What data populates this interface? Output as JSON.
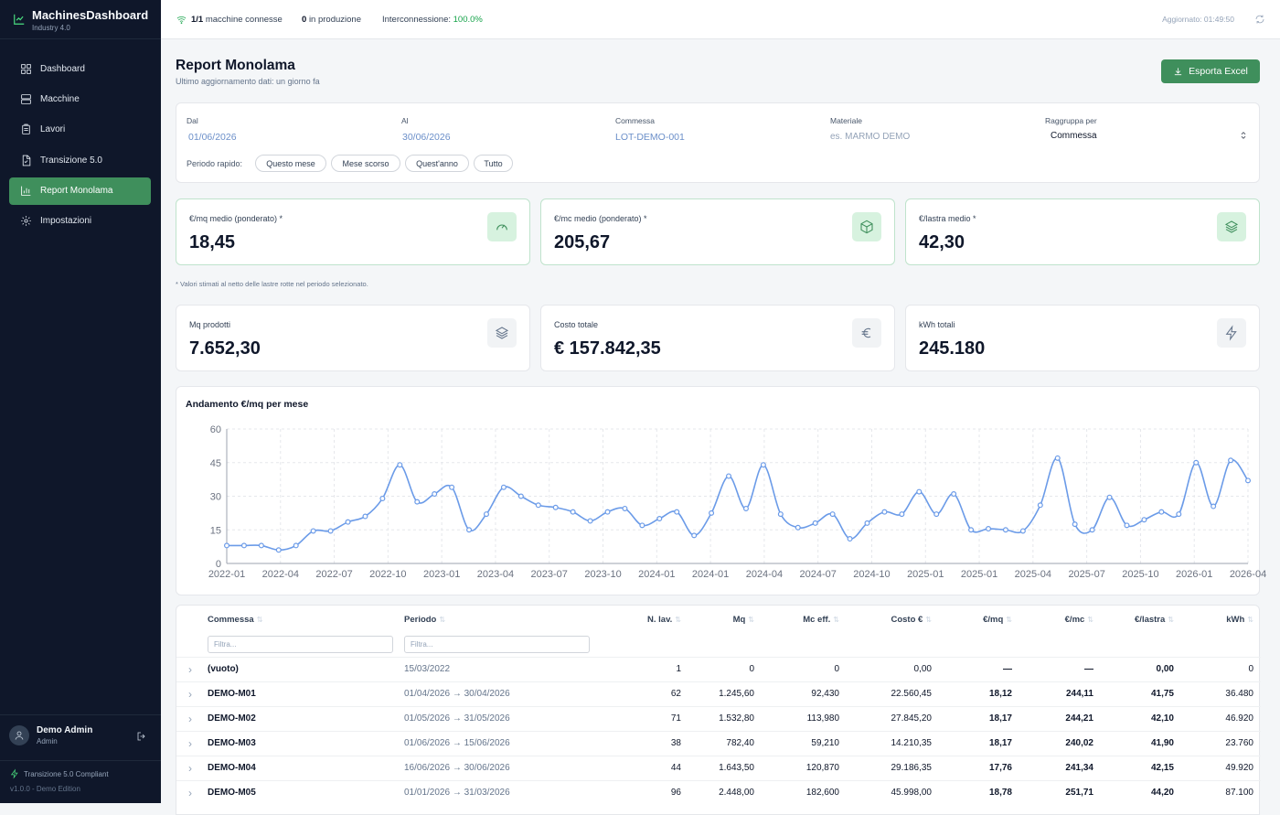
{
  "app": {
    "title": "MachinesDashboard",
    "subtitle": "Industry 4.0",
    "icon": "chart-icon"
  },
  "nav": [
    {
      "label": "Dashboard",
      "icon": "grid-icon",
      "active": false
    },
    {
      "label": "Macchine",
      "icon": "server-icon",
      "active": false
    },
    {
      "label": "Lavori",
      "icon": "clipboard-icon",
      "active": false
    },
    {
      "label": "Transizione 5.0",
      "icon": "document-icon",
      "active": false
    },
    {
      "label": "Report Monolama",
      "icon": "bar-chart-icon",
      "active": true
    },
    {
      "label": "Impostazioni",
      "icon": "gear-icon",
      "active": false
    }
  ],
  "user": {
    "name": "Demo Admin",
    "role": "Admin"
  },
  "footer": {
    "compliance": "Transizione 5.0 Compliant",
    "version": "v1.0.0 - Demo Edition"
  },
  "topbar": {
    "connected_count": "1/1",
    "connected_label": "macchine connesse",
    "production_count": "0",
    "production_label": "in produzione",
    "interconnection_label": "Interconnessione:",
    "interconnection_value": "100.0%",
    "updated": "Aggiornato: 01:49:50"
  },
  "page": {
    "title": "Report Monolama",
    "subtitle": "Ultimo aggiornamento dati: un giorno fa",
    "export_label": "Esporta Excel"
  },
  "filters": {
    "from_label": "Dal",
    "from_value": "01/06/2026",
    "to_label": "Al",
    "to_value": "30/06/2026",
    "order_label": "Commessa",
    "order_value": "LOT-DEMO-001",
    "material_label": "Materiale",
    "material_placeholder": "es. MARMO DEMO",
    "group_label": "Raggruppa per",
    "group_value": "Commessa",
    "quick_label": "Periodo rapido:",
    "quick": [
      "Questo mese",
      "Mese scorso",
      "Quest'anno",
      "Tutto"
    ]
  },
  "kpi_top": [
    {
      "label": "€/mq medio (ponderato) *",
      "value": "18,45",
      "icon": "gauge-icon"
    },
    {
      "label": "€/mc medio (ponderato) *",
      "value": "205,67",
      "icon": "box-icon"
    },
    {
      "label": "€/lastra medio *",
      "value": "42,30",
      "icon": "layers-icon"
    }
  ],
  "note": "* Valori stimati al netto delle lastre rotte nel periodo selezionato.",
  "kpi_bottom": [
    {
      "label": "Mq prodotti",
      "value": "7.652,30",
      "icon": "layers-icon"
    },
    {
      "label": "Costo totale",
      "value": "€ 157.842,35",
      "icon": "euro-icon"
    },
    {
      "label": "kWh totali",
      "value": "245.180",
      "icon": "bolt-icon"
    }
  ],
  "chart_data": {
    "type": "line",
    "title": "Andamento €/mq per mese",
    "ylim": [
      0,
      60
    ],
    "yticks": [
      0,
      15,
      30,
      45,
      60
    ],
    "xticks": [
      "2022-01",
      "2022-04",
      "2022-07",
      "2022-10",
      "2023-01",
      "2023-04",
      "2023-07",
      "2023-10",
      "2024-01",
      "2024-01",
      "2024-04",
      "2024-07",
      "2024-10",
      "2025-01",
      "2025-01",
      "2025-04",
      "2025-07",
      "2025-10",
      "2026-01",
      "2026-04"
    ],
    "grid": true,
    "color": "#6b9be8",
    "series": [
      {
        "values": [
          8,
          8,
          8,
          6,
          8,
          14.5,
          14.5,
          18.5,
          21,
          29,
          44,
          27.5,
          31,
          34,
          15,
          22,
          34,
          30,
          26,
          25,
          23,
          19,
          23,
          24.5,
          17,
          20,
          23,
          12.5,
          22.5,
          39,
          24.5,
          44,
          22,
          16,
          18,
          22,
          11,
          18,
          23,
          22,
          32,
          22,
          31,
          15,
          15.5,
          15,
          14.5,
          26,
          47,
          17.5,
          15,
          29.5,
          17,
          19.5,
          23,
          22,
          45,
          25.5,
          46,
          37
        ]
      }
    ]
  },
  "table": {
    "columns": [
      "Commessa",
      "Periodo",
      "N. lav.",
      "Mq",
      "Mc eff.",
      "Costo €",
      "€/mq",
      "€/mc",
      "€/lastra",
      "kWh"
    ],
    "filter_placeholder": "Filtra...",
    "rows": [
      [
        "(vuoto)",
        "15/03/2022",
        "1",
        "0",
        "0",
        "0,00",
        "—",
        "—",
        "0,00",
        "0"
      ],
      [
        "DEMO-M01",
        "01/04/2026 → 30/04/2026",
        "62",
        "1.245,60",
        "92,430",
        "22.560,45",
        "18,12",
        "244,11",
        "41,75",
        "36.480"
      ],
      [
        "DEMO-M02",
        "01/05/2026 → 31/05/2026",
        "71",
        "1.532,80",
        "113,980",
        "27.845,20",
        "18,17",
        "244,21",
        "42,10",
        "46.920"
      ],
      [
        "DEMO-M03",
        "01/06/2026 → 15/06/2026",
        "38",
        "782,40",
        "59,210",
        "14.210,35",
        "18,17",
        "240,02",
        "41,90",
        "23.760"
      ],
      [
        "DEMO-M04",
        "16/06/2026 → 30/06/2026",
        "44",
        "1.643,50",
        "120,870",
        "29.186,35",
        "17,76",
        "241,34",
        "42,15",
        "49.920"
      ],
      [
        "DEMO-M05",
        "01/01/2026 → 31/03/2026",
        "96",
        "2.448,00",
        "182,600",
        "45.998,00",
        "18,78",
        "251,71",
        "44,20",
        "87.100"
      ]
    ]
  }
}
